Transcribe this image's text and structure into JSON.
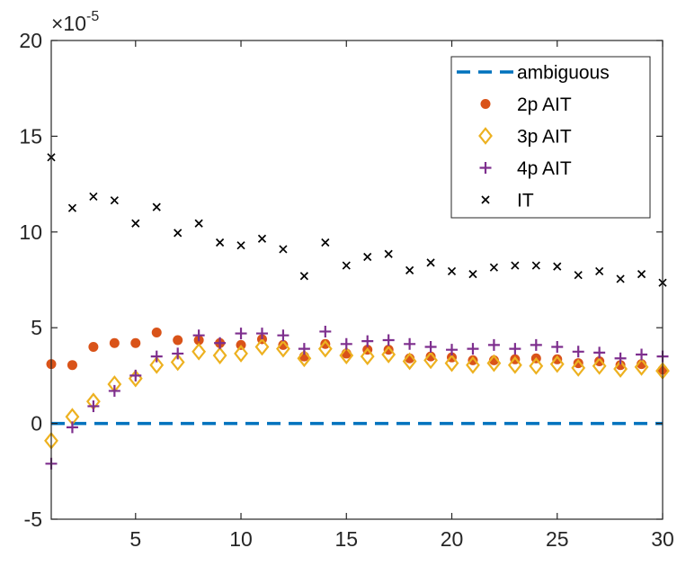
{
  "chart_data": {
    "type": "scatter",
    "xlim": [
      1,
      30
    ],
    "ylim": [
      -5,
      20
    ],
    "xticks": [
      5,
      10,
      15,
      20,
      25,
      30
    ],
    "yticks": [
      -5,
      0,
      5,
      10,
      15,
      20
    ],
    "xtick_labels": [
      "5",
      "10",
      "15",
      "20",
      "25",
      "30"
    ],
    "ytick_labels": [
      "-5",
      "0",
      "5",
      "10",
      "15",
      "20"
    ],
    "y_multiplier": {
      "base": "×10",
      "exponent": "-5"
    },
    "grid": false,
    "legend_position": "top-right",
    "series": [
      {
        "name": "ambiguous",
        "style": "dashed-line",
        "color": "#0072BD",
        "x": [
          1,
          30
        ],
        "y": [
          0,
          0
        ]
      },
      {
        "name": "2p AIT",
        "style": "filled-circle",
        "color": "#D95319",
        "x": [
          1,
          2,
          3,
          4,
          5,
          6,
          7,
          8,
          9,
          10,
          11,
          12,
          13,
          14,
          15,
          16,
          17,
          18,
          19,
          20,
          21,
          22,
          23,
          24,
          25,
          26,
          27,
          28,
          29,
          30
        ],
        "y": [
          3.1,
          3.05,
          4.0,
          4.2,
          4.2,
          4.75,
          4.35,
          4.35,
          4.2,
          4.1,
          4.4,
          4.1,
          3.5,
          4.15,
          3.65,
          3.85,
          3.85,
          3.4,
          3.5,
          3.45,
          3.3,
          3.3,
          3.35,
          3.4,
          3.35,
          3.15,
          3.25,
          3.05,
          3.1,
          2.8
        ]
      },
      {
        "name": "3p AIT",
        "style": "open-diamond",
        "color": "#EDB120",
        "x": [
          1,
          2,
          3,
          4,
          5,
          6,
          7,
          8,
          9,
          10,
          11,
          12,
          13,
          14,
          15,
          16,
          17,
          18,
          19,
          20,
          21,
          22,
          23,
          24,
          25,
          26,
          27,
          28,
          29,
          30
        ],
        "y": [
          -0.9,
          0.35,
          1.15,
          2.05,
          2.35,
          3.05,
          3.2,
          3.75,
          3.55,
          3.65,
          4.0,
          3.9,
          3.4,
          3.9,
          3.55,
          3.5,
          3.6,
          3.25,
          3.3,
          3.15,
          3.05,
          3.15,
          3.05,
          3.0,
          3.1,
          2.9,
          3.0,
          2.85,
          2.95,
          2.75
        ]
      },
      {
        "name": "4p AIT",
        "style": "plus",
        "color": "#7E2F8E",
        "x": [
          1,
          2,
          3,
          4,
          5,
          6,
          7,
          8,
          9,
          10,
          11,
          12,
          13,
          14,
          15,
          16,
          17,
          18,
          19,
          20,
          21,
          22,
          23,
          24,
          25,
          26,
          27,
          28,
          29,
          30
        ],
        "y": [
          -2.1,
          -0.2,
          0.9,
          1.7,
          2.5,
          3.5,
          3.65,
          4.6,
          4.2,
          4.7,
          4.7,
          4.6,
          3.9,
          4.8,
          4.15,
          4.3,
          4.35,
          4.15,
          4.0,
          3.85,
          3.9,
          4.1,
          3.9,
          4.1,
          4.0,
          3.75,
          3.7,
          3.4,
          3.6,
          3.5
        ]
      },
      {
        "name": "IT",
        "style": "x-cross",
        "color": "#000000",
        "x": [
          1,
          2,
          3,
          4,
          5,
          6,
          7,
          8,
          9,
          10,
          11,
          12,
          13,
          14,
          15,
          16,
          17,
          18,
          19,
          20,
          21,
          22,
          23,
          24,
          25,
          26,
          27,
          28,
          29,
          30
        ],
        "y": [
          13.9,
          11.25,
          11.85,
          11.65,
          10.45,
          11.3,
          9.95,
          10.45,
          9.45,
          9.3,
          9.65,
          9.1,
          7.7,
          9.45,
          8.25,
          8.7,
          8.85,
          8.0,
          8.4,
          7.95,
          7.8,
          8.15,
          8.25,
          8.25,
          8.2,
          7.75,
          7.95,
          7.55,
          7.8,
          7.35
        ]
      }
    ]
  }
}
